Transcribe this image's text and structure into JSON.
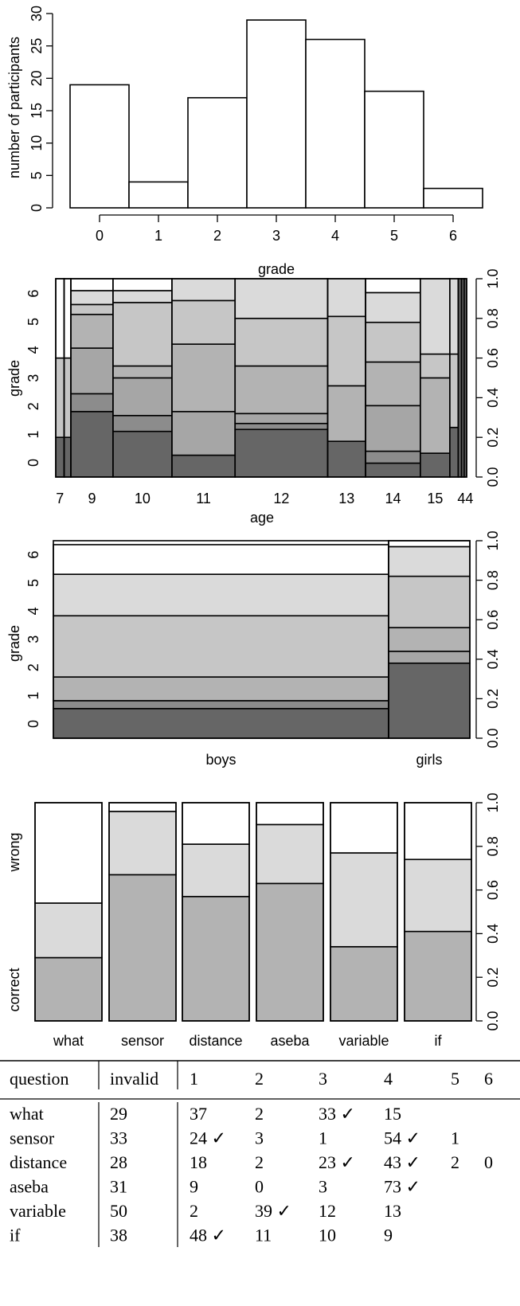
{
  "colors": {
    "g0": "#666666",
    "g1": "#8c8c8c",
    "g2": "#a6a6a6",
    "g3": "#b3b3b3",
    "g4": "#c6c6c6",
    "g5": "#dadada",
    "g6": "#ffffff",
    "black": "#000000"
  },
  "chart_data": [
    {
      "type": "bar",
      "ylabel": "number of participants",
      "xlabel": "grade",
      "categories": [
        "0",
        "1",
        "2",
        "3",
        "4",
        "5",
        "6"
      ],
      "values": [
        19,
        4,
        17,
        29,
        26,
        18,
        3
      ],
      "yticks": [
        "0",
        "5",
        "10",
        "15",
        "20",
        "25",
        "30"
      ],
      "ylim": [
        0,
        30
      ]
    },
    {
      "type": "mosaic",
      "xlabel": "age",
      "ylabel": "grade",
      "yticks_left": [
        "0",
        "1",
        "2",
        "3",
        "4",
        "5",
        "6"
      ],
      "yticks_right": [
        "0.0",
        "0.2",
        "0.4",
        "0.6",
        "0.8",
        "1.0"
      ],
      "columns": [
        {
          "label": "7",
          "width": 1,
          "cum": [
            0.2,
            0.2,
            0.2,
            0.2,
            0.6,
            0.6,
            1.0
          ]
        },
        {
          "label": "",
          "width": 0.8,
          "cum": [
            0.2,
            0.2,
            0.2,
            0.2,
            0.6,
            0.6,
            1.0
          ]
        },
        {
          "label": "9",
          "width": 5,
          "cum": [
            0.33,
            0.42,
            0.65,
            0.82,
            0.87,
            0.94,
            1.0
          ]
        },
        {
          "label": "10",
          "width": 7,
          "cum": [
            0.23,
            0.31,
            0.5,
            0.56,
            0.88,
            0.94,
            1.0
          ]
        },
        {
          "label": "11",
          "width": 7.5,
          "cum": [
            0.11,
            0.11,
            0.33,
            0.67,
            0.89,
            1.0,
            1.0
          ]
        },
        {
          "label": "12",
          "width": 11,
          "cum": [
            0.24,
            0.27,
            0.32,
            0.56,
            0.8,
            1.0,
            1.0
          ]
        },
        {
          "label": "13",
          "width": 4.5,
          "cum": [
            0.18,
            0.18,
            0.18,
            0.46,
            0.81,
            1.0,
            1.0
          ]
        },
        {
          "label": "14",
          "width": 6.5,
          "cum": [
            0.07,
            0.13,
            0.36,
            0.58,
            0.78,
            0.93,
            1.0
          ]
        },
        {
          "label": "15",
          "width": 3.5,
          "cum": [
            0.12,
            0.12,
            0.12,
            0.5,
            0.62,
            1.0,
            1.0
          ]
        },
        {
          "label": "",
          "width": 1,
          "cum": [
            0.25,
            0.25,
            0.25,
            0.25,
            0.62,
            1.0,
            1.0
          ]
        },
        {
          "label": "",
          "width": 0.4,
          "cum": [
            1.0,
            1.0,
            1.0,
            1.0,
            1.0,
            1.0,
            1.0
          ]
        },
        {
          "label": "",
          "width": 0.3,
          "cum": [
            1.0,
            1.0,
            1.0,
            1.0,
            1.0,
            1.0,
            1.0
          ]
        },
        {
          "label": "44",
          "width": 0.3,
          "cum": [
            1.0,
            1.0,
            1.0,
            1.0,
            1.0,
            1.0,
            1.0
          ]
        }
      ]
    },
    {
      "type": "mosaic",
      "ylabel": "grade",
      "yticks_left": [
        "0",
        "1",
        "2",
        "3",
        "4",
        "5",
        "6"
      ],
      "yticks_right": [
        "0.0",
        "0.2",
        "0.4",
        "0.6",
        "0.8",
        "1.0"
      ],
      "columns": [
        {
          "label": "boys",
          "width": 106,
          "cum": [
            0.15,
            0.19,
            0.19,
            0.31,
            0.62,
            0.83,
            0.98
          ]
        },
        {
          "label": "girls",
          "width": 13,
          "cum": [
            0.38,
            0.38,
            0.44,
            0.56,
            0.82,
            0.97,
            1.0
          ]
        }
      ]
    },
    {
      "type": "mosaic",
      "ylabel_bottom": "correct",
      "ylabel_top": "wrong",
      "yticks_right": [
        "0.0",
        "0.2",
        "0.4",
        "0.6",
        "0.8",
        "1.0"
      ],
      "columns": [
        {
          "label": "what",
          "cum": [
            0.29,
            0.54,
            1.0
          ]
        },
        {
          "label": "sensor",
          "cum": [
            0.67,
            0.96,
            1.0
          ]
        },
        {
          "label": "distance",
          "cum": [
            0.57,
            0.81,
            1.0
          ]
        },
        {
          "label": "aseba",
          "cum": [
            0.63,
            0.9,
            1.0
          ]
        },
        {
          "label": "variable",
          "cum": [
            0.34,
            0.77,
            1.0
          ]
        },
        {
          "label": "if",
          "cum": [
            0.41,
            0.74,
            1.0
          ]
        }
      ]
    },
    {
      "type": "table",
      "headers": [
        "question",
        "invalid",
        "1",
        "2",
        "3",
        "4",
        "5",
        "6"
      ],
      "rows": [
        [
          "what",
          "29",
          "37",
          "2",
          "33 ✓",
          "15",
          "",
          ""
        ],
        [
          "sensor",
          "33",
          "24 ✓",
          "3",
          "1",
          "54 ✓",
          "1",
          ""
        ],
        [
          "distance",
          "28",
          "18",
          "2",
          "23 ✓",
          "43 ✓",
          "2",
          "0"
        ],
        [
          "aseba",
          "31",
          "9",
          "0",
          "3",
          "73 ✓",
          "",
          ""
        ],
        [
          "variable",
          "50",
          "2",
          "39 ✓",
          "12",
          "13",
          "",
          ""
        ],
        [
          "if",
          "38",
          "48 ✓",
          "11",
          "10",
          "9",
          "",
          ""
        ]
      ]
    }
  ]
}
